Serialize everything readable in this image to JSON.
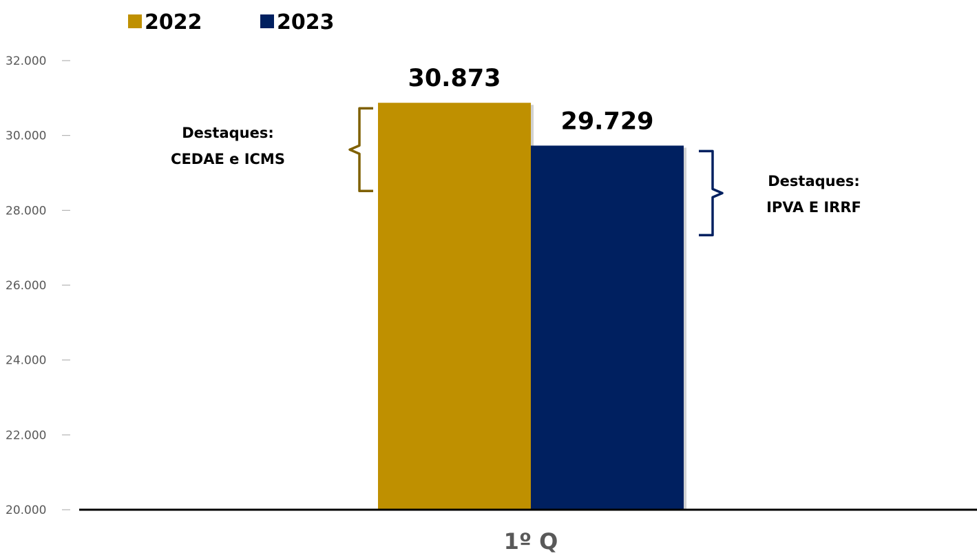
{
  "chart_data": {
    "type": "bar",
    "categories": [
      "1º Q"
    ],
    "series": [
      {
        "name": "2022",
        "values": [
          30873
        ],
        "color": "#BF9000",
        "label": "30.873"
      },
      {
        "name": "2023",
        "values": [
          29729
        ],
        "color": "#002060",
        "label": "29.729"
      }
    ],
    "ylim": [
      20000,
      32000
    ],
    "yticks": [
      20000,
      22000,
      24000,
      26000,
      28000,
      30000,
      32000
    ],
    "ytick_labels": [
      "20.000",
      "22.000",
      "24.000",
      "26.000",
      "28.000",
      "30.000",
      "32.000"
    ],
    "legend_position": "top-left",
    "grid": false,
    "annotations": [
      {
        "series": "2022",
        "side": "left",
        "lines": [
          "Destaques:",
          "CEDAE e ICMS"
        ],
        "color": "#7F6000"
      },
      {
        "series": "2023",
        "side": "right",
        "lines": [
          "Destaques:",
          "IPVA E IRRF"
        ],
        "color": "#002060"
      }
    ]
  }
}
